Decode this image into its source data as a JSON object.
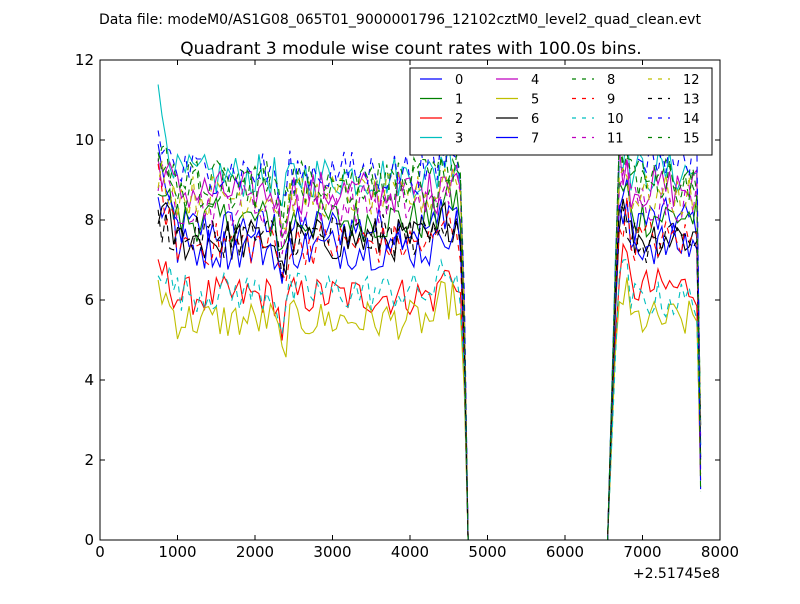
{
  "figure": {
    "suptitle": "Data file: modeM0/AS1G08_065T01_9000001796_12102cztM0_level2_quad_clean.evt"
  },
  "chart_data": {
    "type": "line",
    "title": "Quadrant 3 module wise count rates with 100.0s bins.",
    "xlabel": "",
    "ylabel": "",
    "x_offset_label": "+2.51745e8",
    "xlim": [
      0,
      8000
    ],
    "ylim": [
      0,
      12
    ],
    "xticks": [
      0,
      1000,
      2000,
      3000,
      4000,
      5000,
      6000,
      7000,
      8000
    ],
    "yticks": [
      0,
      2,
      4,
      6,
      8,
      10,
      12
    ],
    "grid": false,
    "legend_position": "top-right",
    "legend_columns": 4,
    "active_time_ranges": [
      [
        750,
        4750
      ],
      [
        6550,
        7750
      ]
    ],
    "series": [
      {
        "name": "0",
        "color": "#0000ff",
        "dash": "solid",
        "level_start": 8.4,
        "level": 7.8,
        "level_late": 8.0
      },
      {
        "name": "1",
        "color": "#008000",
        "dash": "solid",
        "level_start": 9.1,
        "level": 8.0,
        "level_late": 8.1
      },
      {
        "name": "2",
        "color": "#ff0000",
        "dash": "solid",
        "level_start": 6.9,
        "level": 6.1,
        "level_late": 6.3
      },
      {
        "name": "3",
        "color": "#00bfbf",
        "dash": "solid",
        "level_start": 11.0,
        "level": 9.1,
        "level_late": 9.2
      },
      {
        "name": "4",
        "color": "#bf00bf",
        "dash": "solid",
        "level_start": 9.5,
        "level": 8.7,
        "level_late": 8.8
      },
      {
        "name": "5",
        "color": "#bfbf00",
        "dash": "solid",
        "level_start": 6.4,
        "level": 5.5,
        "level_late": 5.5
      },
      {
        "name": "6",
        "color": "#000000",
        "dash": "solid",
        "level_start": 8.3,
        "level": 7.5,
        "level_late": 7.6
      },
      {
        "name": "7",
        "color": "#0000ff",
        "dash": "solid",
        "level_start": 10.1,
        "level": 7.3,
        "level_late": 7.4
      },
      {
        "name": "8",
        "color": "#008000",
        "dash": "dashed",
        "level_start": 9.8,
        "level": 9.0,
        "level_late": 9.0
      },
      {
        "name": "9",
        "color": "#ff0000",
        "dash": "dashed",
        "level_start": 8.9,
        "level": 7.4,
        "level_late": 7.5
      },
      {
        "name": "10",
        "color": "#00bfbf",
        "dash": "dashed",
        "level_start": 7.0,
        "level": 6.2,
        "level_late": 6.0
      },
      {
        "name": "11",
        "color": "#bf00bf",
        "dash": "dashed",
        "level_start": 9.0,
        "level": 8.4,
        "level_late": 8.5
      },
      {
        "name": "12",
        "color": "#bfbf00",
        "dash": "dashed",
        "level_start": 9.3,
        "level": 8.6,
        "level_late": 8.6
      },
      {
        "name": "13",
        "color": "#000000",
        "dash": "dashed",
        "level_start": 8.0,
        "level": 7.6,
        "level_late": 7.4
      },
      {
        "name": "14",
        "color": "#0000ff",
        "dash": "dashed",
        "level_start": 10.1,
        "level": 9.2,
        "level_late": 9.6
      },
      {
        "name": "15",
        "color": "#008000",
        "dash": "dashed",
        "level_start": 9.6,
        "level": 8.8,
        "level_late": 9.0
      }
    ]
  }
}
